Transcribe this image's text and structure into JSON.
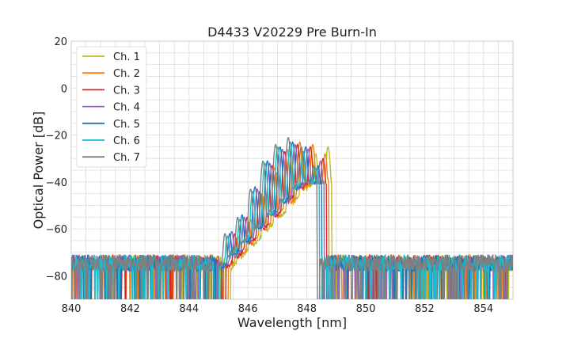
{
  "chart_data": {
    "type": "line",
    "title": "D4433 V20229 Pre Burn-In",
    "xlabel": "Wavelength [nm]",
    "ylabel": "Optical Power [dB]",
    "xlim": [
      840,
      855
    ],
    "ylim": [
      -90,
      20
    ],
    "x_ticks": [
      840,
      842,
      844,
      846,
      848,
      850,
      852,
      854
    ],
    "y_ticks": [
      -80,
      -60,
      -40,
      -20,
      0,
      20
    ],
    "x_tick_labels": [
      "840",
      "842",
      "844",
      "846",
      "848",
      "850",
      "852",
      "854"
    ],
    "y_tick_labels": [
      "−80",
      "−60",
      "−40",
      "−20",
      "0",
      "20"
    ],
    "grid": true,
    "legend_position": "top-left",
    "noise_floor_db": -76,
    "series": [
      {
        "name": "Ch. 1",
        "color": "#bcbd22",
        "peaks_nm": [
          845.7,
          846.1,
          846.55,
          846.98,
          847.42,
          847.85,
          848.3,
          848.72
        ],
        "peaks_db": [
          -63,
          -56,
          -46,
          -36,
          -28,
          -27,
          -28,
          -25
        ]
      },
      {
        "name": "Ch. 2",
        "color": "#ff7f0e",
        "peaks_nm": [
          845.62,
          846.03,
          846.47,
          846.9,
          847.33,
          847.76,
          848.2,
          848.62
        ],
        "peaks_db": [
          -64,
          -57,
          -45,
          -34,
          -26,
          -23,
          -24,
          -28
        ]
      },
      {
        "name": "Ch. 3",
        "color": "#d62728",
        "peaks_nm": [
          845.55,
          845.97,
          846.4,
          846.82,
          847.25,
          847.68,
          848.12,
          848.55
        ],
        "peaks_db": [
          -62,
          -55,
          -44,
          -33,
          -27,
          -24,
          -25,
          -30
        ]
      },
      {
        "name": "Ch. 4",
        "color": "#9467bd",
        "peaks_nm": [
          845.45,
          845.88,
          846.32,
          846.74,
          847.17,
          847.6,
          848.04,
          848.46
        ],
        "peaks_db": [
          -61,
          -55,
          -43,
          -32,
          -26,
          -24,
          -26,
          -31
        ]
      },
      {
        "name": "Ch. 5",
        "color": "#1f77b4",
        "peaks_nm": [
          845.38,
          845.8,
          846.24,
          846.66,
          847.09,
          847.52,
          847.96,
          848.38
        ],
        "peaks_db": [
          -62,
          -54,
          -42,
          -31,
          -25,
          -23,
          -25,
          -33
        ]
      },
      {
        "name": "Ch. 6",
        "color": "#17becf",
        "peaks_nm": [
          845.3,
          845.72,
          846.16,
          846.58,
          847.01,
          847.44,
          847.88,
          848.3
        ],
        "peaks_db": [
          -63,
          -56,
          -44,
          -32,
          -25,
          -23,
          -27,
          -34
        ]
      },
      {
        "name": "Ch. 7",
        "color": "#7f7f7f",
        "peaks_nm": [
          845.22,
          845.65,
          846.09,
          846.51,
          846.94,
          847.37,
          847.81,
          848.23
        ],
        "peaks_db": [
          -62,
          -55,
          -43,
          -31,
          -24,
          -21,
          -25,
          -33
        ]
      }
    ]
  }
}
